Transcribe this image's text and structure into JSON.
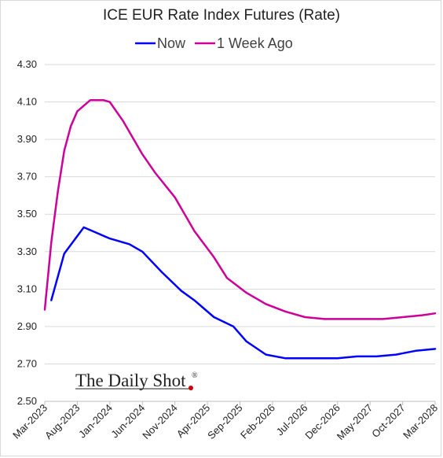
{
  "chart_data": {
    "type": "line",
    "title": "ICE EUR Rate Index Futures (Rate)",
    "xlabel": "",
    "ylabel": "",
    "ylim": [
      2.5,
      4.3
    ],
    "yticks": [
      "2.50",
      "2.70",
      "2.90",
      "3.10",
      "3.30",
      "3.50",
      "3.70",
      "3.90",
      "4.10",
      "4.30"
    ],
    "xticks": [
      "Mar-2023",
      "Aug-2023",
      "Jan-2024",
      "Jun-2024",
      "Nov-2024",
      "Apr-2025",
      "Sep-2025",
      "Feb-2026",
      "Jul-2026",
      "Dec-2026",
      "May-2027",
      "Oct-2027",
      "Mar-2028"
    ],
    "grid": true,
    "legend_position": "top",
    "series": [
      {
        "name": "Now",
        "color": "#0000ff",
        "x": [
          "Apr-2023",
          "Jun-2023",
          "Sep-2023",
          "Nov-2023",
          "Jan-2024",
          "Apr-2024",
          "Jun-2024",
          "Sep-2024",
          "Dec-2024",
          "Feb-2025",
          "May-2025",
          "Aug-2025",
          "Oct-2025",
          "Jan-2026",
          "Apr-2026",
          "Jun-2026",
          "Sep-2026",
          "Dec-2026",
          "Mar-2027",
          "Jun-2027",
          "Sep-2027",
          "Dec-2027",
          "Mar-2028"
        ],
        "values": [
          3.04,
          3.29,
          3.43,
          3.4,
          3.37,
          3.34,
          3.3,
          3.19,
          3.09,
          3.04,
          2.95,
          2.9,
          2.82,
          2.75,
          2.73,
          2.73,
          2.73,
          2.73,
          2.74,
          2.74,
          2.75,
          2.77,
          2.78
        ]
      },
      {
        "name": "1 Week Ago",
        "color": "#cc0099",
        "x": [
          "Mar-2023",
          "Apr-2023",
          "May-2023",
          "Jun-2023",
          "Jul-2023",
          "Aug-2023",
          "Oct-2023",
          "Dec-2023",
          "Jan-2024",
          "Mar-2024",
          "Jun-2024",
          "Aug-2024",
          "Nov-2024",
          "Feb-2025",
          "May-2025",
          "Jul-2025",
          "Oct-2025",
          "Jan-2026",
          "Apr-2026",
          "Jul-2026",
          "Oct-2026",
          "Jan-2027",
          "Apr-2027",
          "Jul-2027",
          "Oct-2027",
          "Jan-2028",
          "Mar-2028"
        ],
        "values": [
          2.99,
          3.35,
          3.62,
          3.84,
          3.97,
          4.05,
          4.11,
          4.11,
          4.1,
          4.0,
          3.82,
          3.72,
          3.59,
          3.41,
          3.27,
          3.16,
          3.08,
          3.02,
          2.98,
          2.95,
          2.94,
          2.94,
          2.94,
          2.94,
          2.95,
          2.96,
          2.97
        ]
      }
    ]
  },
  "watermark": {
    "text": "The Daily Shot",
    "mark": "®",
    "dot_color": "#cc0000"
  }
}
